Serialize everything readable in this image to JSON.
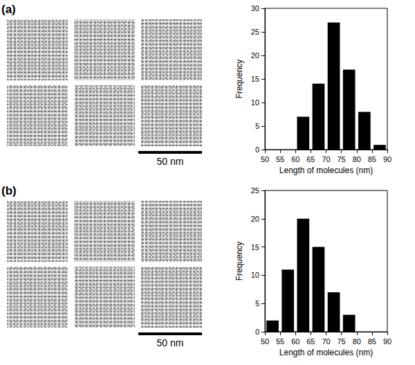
{
  "panels": [
    {
      "label": "(a)",
      "images": 6,
      "scale_bar": "50 nm"
    },
    {
      "label": "(b)",
      "images": 6,
      "scale_bar": "50 nm"
    }
  ],
  "chart_data": [
    {
      "type": "histogram",
      "xlabel": "Length of molecules (nm)",
      "ylabel": "Frequency",
      "bins": [
        50,
        55,
        60,
        65,
        70,
        75,
        80,
        85,
        90
      ],
      "values": [
        0,
        0,
        7,
        14,
        27,
        17,
        8,
        1
      ],
      "color": "#000000",
      "xlim": [
        50,
        90
      ],
      "xticks": [
        50,
        55,
        60,
        65,
        70,
        75,
        80,
        85,
        90
      ],
      "ylim": [
        0,
        30
      ],
      "yticks": [
        0,
        5,
        10,
        15,
        20,
        25,
        30
      ],
      "grid": false
    },
    {
      "type": "histogram",
      "xlabel": "Length of molecules (nm)",
      "ylabel": "Frequency",
      "bins": [
        50,
        55,
        60,
        65,
        70,
        75,
        80,
        85,
        90
      ],
      "values": [
        2,
        11,
        20,
        15,
        7,
        3,
        0,
        0
      ],
      "color": "#000000",
      "xlim": [
        50,
        90
      ],
      "xticks": [
        50,
        55,
        60,
        65,
        70,
        75,
        80,
        85,
        90
      ],
      "ylim": [
        0,
        25
      ],
      "yticks": [
        0,
        5,
        10,
        15,
        20,
        25
      ],
      "grid": false
    }
  ]
}
